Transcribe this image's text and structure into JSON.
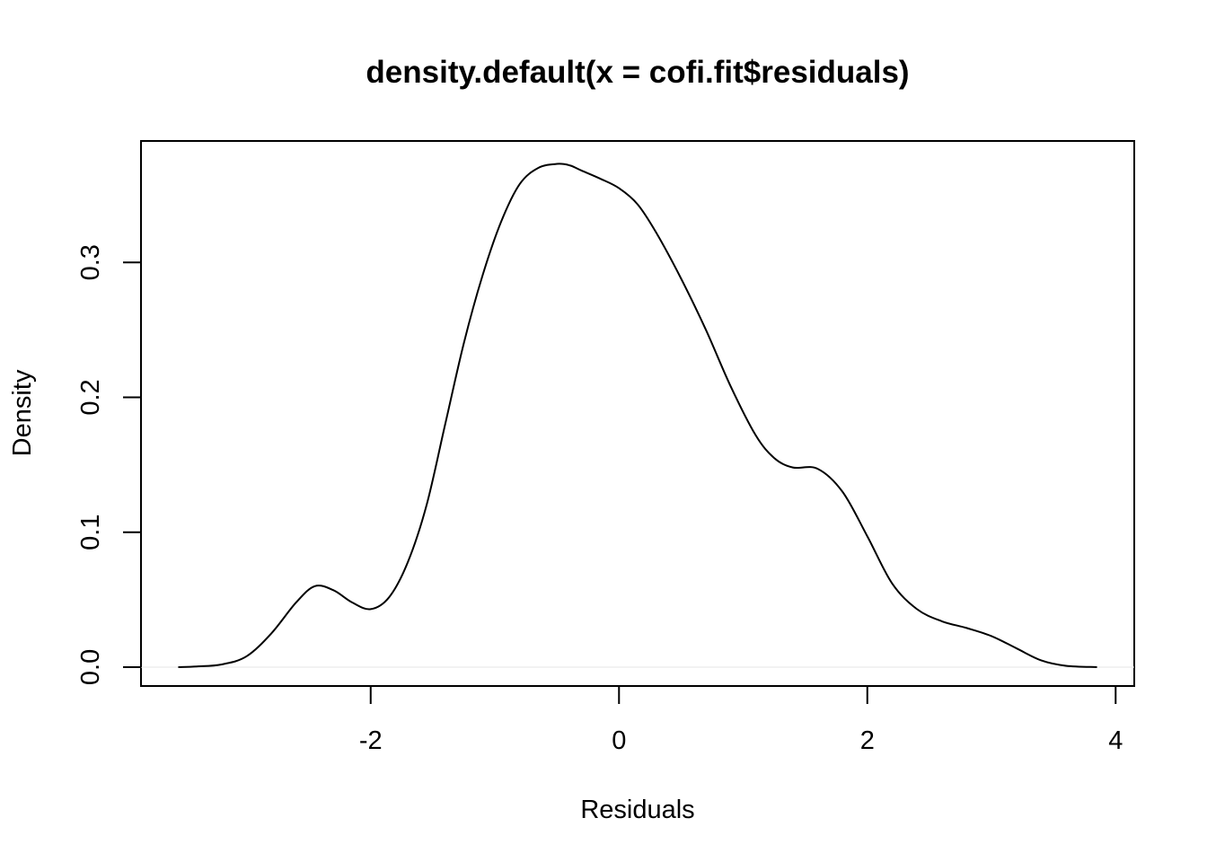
{
  "chart_data": {
    "type": "line",
    "title": "density.default(x = cofi.fit$residuals)",
    "xlabel": "Residuals",
    "ylabel": "Density",
    "xlim": [
      -3.85,
      4.15
    ],
    "ylim": [
      -0.014,
      0.39
    ],
    "xticks": [
      -2,
      0,
      2,
      4
    ],
    "xtick_labels": [
      "-2",
      "0",
      "2",
      "4"
    ],
    "yticks": [
      0.0,
      0.1,
      0.2,
      0.3
    ],
    "ytick_labels": [
      "0.0",
      "0.1",
      "0.2",
      "0.3"
    ],
    "grid": false,
    "legend": "none",
    "zero_reference_line": true,
    "line_color": "#000000",
    "series": [
      {
        "x": [
          -3.55,
          -3.4,
          -3.2,
          -3.0,
          -2.8,
          -2.6,
          -2.45,
          -2.3,
          -2.15,
          -2.0,
          -1.85,
          -1.7,
          -1.55,
          -1.4,
          -1.25,
          -1.1,
          -0.95,
          -0.8,
          -0.65,
          -0.5,
          -0.4,
          -0.3,
          -0.15,
          0.0,
          0.15,
          0.3,
          0.5,
          0.7,
          0.9,
          1.1,
          1.25,
          1.4,
          1.6,
          1.8,
          2.0,
          2.2,
          2.4,
          2.6,
          2.8,
          3.0,
          3.2,
          3.4,
          3.6,
          3.85
        ],
        "y": [
          0.0,
          0.0005,
          0.002,
          0.008,
          0.025,
          0.048,
          0.06,
          0.057,
          0.048,
          0.043,
          0.052,
          0.078,
          0.12,
          0.18,
          0.24,
          0.29,
          0.33,
          0.358,
          0.37,
          0.373,
          0.372,
          0.368,
          0.362,
          0.355,
          0.343,
          0.322,
          0.288,
          0.25,
          0.208,
          0.172,
          0.155,
          0.148,
          0.147,
          0.13,
          0.097,
          0.062,
          0.043,
          0.034,
          0.029,
          0.023,
          0.014,
          0.005,
          0.001,
          0.0
        ]
      }
    ]
  }
}
